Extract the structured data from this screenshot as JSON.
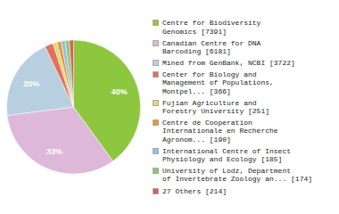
{
  "chart_data": {
    "type": "pie",
    "categories": [
      "Centre for Biodiversity\nGenomics [7391]",
      "Canadian Centre for DNA\nBarcoding [6181]",
      "Mined from GenBank, NCBI [3722]",
      "Center for Biology and\nManagement of Populations,\nMontpel... [366]",
      "Fujian Agriculture and\nForestry University [251]",
      "Centre de Cooperation\nInternationale en Recherche\nAgronom... [190]",
      "International Centre of Insect\nPhysiology and Ecology [185]",
      "University of Lodz, Department\nof Invertebrate Zoology an... [174]",
      "27 Others [214]"
    ],
    "values": [
      40,
      33,
      20,
      2,
      1,
      1,
      1,
      1,
      1
    ],
    "value_labels": [
      "40%",
      "33%",
      "20%",
      null,
      null,
      null,
      null,
      null,
      null
    ],
    "colors": [
      "#8dc63f",
      "#ddb8d8",
      "#b8cfe0",
      "#e07060",
      "#ddd87a",
      "#e8973a",
      "#90c0e0",
      "#90c870",
      "#d96050"
    ],
    "data_labels": true,
    "legend": "right"
  }
}
